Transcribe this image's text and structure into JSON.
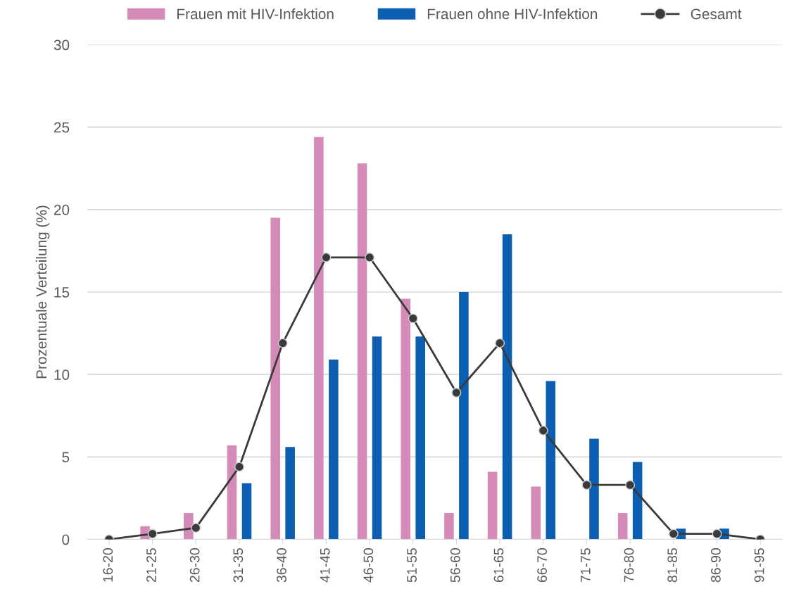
{
  "chart_data": {
    "type": "bar",
    "ylabel": "Prozentuale Verteilung (%)",
    "categories": [
      "16-20",
      "21-25",
      "26-30",
      "31-35",
      "36-40",
      "41-45",
      "46-50",
      "51-55",
      "56-60",
      "61-65",
      "66-70",
      "71-75",
      "76-80",
      "81-85",
      "86-90",
      "91-95"
    ],
    "series": [
      {
        "name": "Frauen mit HIV-Infektion",
        "color": "#d48bb8",
        "values": [
          null,
          0.8,
          1.6,
          5.7,
          19.5,
          24.4,
          22.8,
          14.6,
          1.6,
          4.1,
          3.2,
          null,
          1.6,
          null,
          null,
          null
        ]
      },
      {
        "name": "Frauen ohne HIV-Infektion",
        "color": "#0c5fb0",
        "values": [
          null,
          null,
          null,
          3.4,
          5.6,
          10.9,
          12.3,
          12.3,
          15.0,
          18.5,
          9.6,
          6.1,
          4.7,
          0.65,
          0.65,
          null
        ]
      },
      {
        "name": "Gesamt",
        "type": "line",
        "color": "#3a3a3a",
        "marker": "circle",
        "values": [
          0,
          0.34,
          0.7,
          4.4,
          11.9,
          17.1,
          17.1,
          13.4,
          8.9,
          11.9,
          6.6,
          3.3,
          3.3,
          0.34,
          0.34,
          0
        ]
      }
    ],
    "ylim": [
      0,
      30
    ],
    "yticks": [
      0,
      5,
      10,
      15,
      20,
      25,
      30
    ],
    "grid": "y",
    "legend": "top"
  }
}
